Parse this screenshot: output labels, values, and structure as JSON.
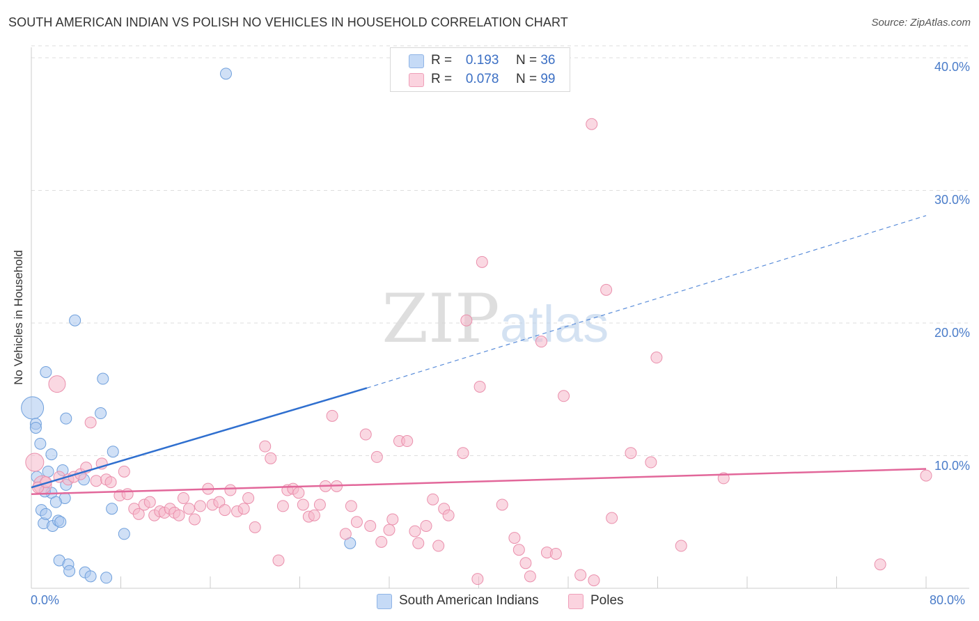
{
  "title": "SOUTH AMERICAN INDIAN VS POLISH NO VEHICLES IN HOUSEHOLD CORRELATION CHART",
  "source": "Source: ZipAtlas.com",
  "watermark": {
    "zip": "ZIP",
    "atlas": "atlas"
  },
  "legend": {
    "r_label": "R =",
    "n_label": "N =",
    "rows": [
      {
        "r": "0.193",
        "n": "36",
        "color": "#a9c7ef"
      },
      {
        "r": "0.078",
        "n": "99",
        "color": "#f6b8cb"
      }
    ]
  },
  "chart_data": {
    "type": "scatter",
    "title": "SOUTH AMERICAN INDIAN VS POLISH NO VEHICLES IN HOUSEHOLD CORRELATION CHART",
    "xlabel": "",
    "ylabel": "No Vehicles in Household",
    "xlim": [
      0,
      80
    ],
    "ylim": [
      0,
      42
    ],
    "x_tick_labels": [
      "0.0%",
      "80.0%"
    ],
    "y_ticks": [
      10,
      20,
      30,
      40
    ],
    "y_tick_labels": [
      "10.0%",
      "20.0%",
      "30.0%",
      "40.0%"
    ],
    "grid": true,
    "legend_position": "top-center",
    "series": [
      {
        "name": "South American Indians",
        "color": "#a9c7ef",
        "stroke": "#6e9fdc",
        "line_color": "#2f6fcf",
        "trend": {
          "x0": 0,
          "y0": 7.6,
          "x1": 30,
          "y1": 15.1,
          "dash_x1": 80,
          "dash_y1": 28.1
        },
        "points": [
          [
            0.1,
            13.6,
            16
          ],
          [
            0.4,
            12.4,
            8
          ],
          [
            0.4,
            12.1,
            8
          ],
          [
            0.8,
            10.9,
            8
          ],
          [
            1.3,
            16.3,
            8
          ],
          [
            1.5,
            8.8,
            8
          ],
          [
            1.8,
            10.1,
            8
          ],
          [
            2.8,
            8.9,
            8
          ],
          [
            3.0,
            6.8,
            8
          ],
          [
            3.1,
            12.8,
            8
          ],
          [
            3.1,
            7.8,
            8
          ],
          [
            4.7,
            8.2,
            8
          ],
          [
            3.9,
            20.2,
            8
          ],
          [
            6.2,
            13.2,
            8
          ],
          [
            6.4,
            15.8,
            8
          ],
          [
            7.3,
            10.3,
            8
          ],
          [
            7.2,
            6.0,
            8
          ],
          [
            8.3,
            4.1,
            8
          ],
          [
            0.5,
            8.4,
            8
          ],
          [
            0.9,
            5.9,
            8
          ],
          [
            1.1,
            4.9,
            8
          ],
          [
            1.3,
            5.6,
            8
          ],
          [
            1.8,
            7.2,
            8
          ],
          [
            1.9,
            4.7,
            8
          ],
          [
            2.2,
            6.5,
            8
          ],
          [
            2.4,
            5.1,
            8
          ],
          [
            2.6,
            5.0,
            8
          ],
          [
            2.5,
            2.1,
            8
          ],
          [
            3.3,
            1.8,
            8
          ],
          [
            3.4,
            1.3,
            8
          ],
          [
            4.8,
            1.2,
            8
          ],
          [
            5.3,
            0.9,
            8
          ],
          [
            6.7,
            0.8,
            8
          ],
          [
            1.2,
            7.3,
            8
          ],
          [
            28.5,
            3.4,
            8
          ],
          [
            17.4,
            38.8,
            8
          ]
        ]
      },
      {
        "name": "Poles",
        "color": "#f6b8cb",
        "stroke": "#ea8fac",
        "line_color": "#e2679a",
        "trend": {
          "x0": 0,
          "y0": 7.1,
          "x1": 80,
          "y1": 9.0
        },
        "points": [
          [
            0.3,
            9.5,
            13
          ],
          [
            1.0,
            7.8,
            13
          ],
          [
            0.6,
            7.6,
            8
          ],
          [
            1.3,
            8.0,
            8
          ],
          [
            2.3,
            15.4,
            12
          ],
          [
            2.5,
            8.4,
            8
          ],
          [
            3.3,
            8.2,
            8
          ],
          [
            3.8,
            8.4,
            8
          ],
          [
            4.4,
            8.6,
            8
          ],
          [
            4.9,
            9.1,
            8
          ],
          [
            5.3,
            12.5,
            8
          ],
          [
            5.8,
            8.1,
            8
          ],
          [
            6.3,
            9.4,
            8
          ],
          [
            6.7,
            8.2,
            8
          ],
          [
            7.1,
            8.0,
            8
          ],
          [
            7.9,
            7.0,
            8
          ],
          [
            8.3,
            8.8,
            8
          ],
          [
            8.6,
            7.1,
            8
          ],
          [
            9.2,
            6.0,
            8
          ],
          [
            9.6,
            5.6,
            8
          ],
          [
            10.1,
            6.3,
            8
          ],
          [
            10.6,
            6.5,
            8
          ],
          [
            11.0,
            5.5,
            8
          ],
          [
            11.5,
            5.8,
            8
          ],
          [
            11.9,
            5.7,
            8
          ],
          [
            12.4,
            6.0,
            8
          ],
          [
            12.8,
            5.7,
            8
          ],
          [
            13.2,
            5.5,
            8
          ],
          [
            13.6,
            6.8,
            8
          ],
          [
            14.1,
            6.0,
            8
          ],
          [
            14.6,
            5.2,
            8
          ],
          [
            15.1,
            6.2,
            8
          ],
          [
            15.8,
            7.5,
            8
          ],
          [
            16.2,
            6.3,
            8
          ],
          [
            16.8,
            6.5,
            8
          ],
          [
            17.3,
            5.9,
            8
          ],
          [
            17.8,
            7.4,
            8
          ],
          [
            18.4,
            5.8,
            8
          ],
          [
            19.0,
            6.0,
            8
          ],
          [
            19.4,
            6.8,
            8
          ],
          [
            20.0,
            4.6,
            8
          ],
          [
            20.9,
            10.7,
            8
          ],
          [
            21.4,
            9.8,
            8
          ],
          [
            22.1,
            2.1,
            8
          ],
          [
            22.5,
            6.2,
            8
          ],
          [
            22.9,
            7.4,
            8
          ],
          [
            23.4,
            7.5,
            8
          ],
          [
            23.9,
            7.2,
            8
          ],
          [
            24.3,
            6.3,
            8
          ],
          [
            24.8,
            5.4,
            8
          ],
          [
            25.3,
            5.5,
            8
          ],
          [
            25.8,
            6.3,
            8
          ],
          [
            26.3,
            7.7,
            8
          ],
          [
            26.9,
            13.0,
            8
          ],
          [
            27.3,
            7.7,
            8
          ],
          [
            28.1,
            4.1,
            8
          ],
          [
            28.6,
            6.2,
            8
          ],
          [
            29.1,
            5.0,
            8
          ],
          [
            29.9,
            11.6,
            8
          ],
          [
            30.3,
            4.7,
            8
          ],
          [
            30.9,
            9.9,
            8
          ],
          [
            31.3,
            3.5,
            8
          ],
          [
            32.0,
            4.4,
            8
          ],
          [
            32.3,
            5.2,
            8
          ],
          [
            32.9,
            11.1,
            8
          ],
          [
            33.6,
            11.1,
            8
          ],
          [
            34.3,
            4.3,
            8
          ],
          [
            34.6,
            3.4,
            8
          ],
          [
            35.3,
            4.7,
            8
          ],
          [
            35.9,
            6.7,
            8
          ],
          [
            36.4,
            3.2,
            8
          ],
          [
            36.9,
            6.0,
            8
          ],
          [
            37.3,
            5.5,
            8
          ],
          [
            38.6,
            10.2,
            8
          ],
          [
            38.9,
            20.2,
            8
          ],
          [
            40.1,
            15.2,
            8
          ],
          [
            40.3,
            24.6,
            8
          ],
          [
            39.9,
            0.7,
            8
          ],
          [
            42.1,
            6.3,
            8
          ],
          [
            43.2,
            3.8,
            8
          ],
          [
            43.6,
            2.9,
            8
          ],
          [
            44.2,
            1.9,
            8
          ],
          [
            44.6,
            0.9,
            8
          ],
          [
            45.6,
            18.6,
            8
          ],
          [
            46.1,
            2.7,
            8
          ],
          [
            46.9,
            2.6,
            8
          ],
          [
            47.6,
            14.5,
            8
          ],
          [
            49.1,
            1.0,
            8
          ],
          [
            50.1,
            35.0,
            8
          ],
          [
            50.3,
            0.6,
            8
          ],
          [
            51.4,
            22.5,
            8
          ],
          [
            51.9,
            5.3,
            8
          ],
          [
            53.6,
            10.2,
            8
          ],
          [
            55.4,
            9.5,
            8
          ],
          [
            55.9,
            17.4,
            8
          ],
          [
            58.1,
            3.2,
            8
          ],
          [
            61.9,
            8.3,
            8
          ],
          [
            75.9,
            1.8,
            8
          ],
          [
            80.0,
            8.5,
            8
          ]
        ]
      }
    ]
  }
}
